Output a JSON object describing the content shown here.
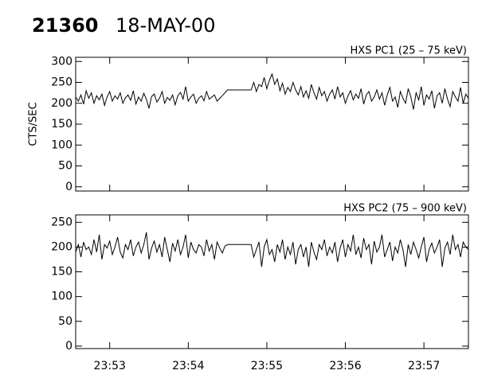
{
  "header": {
    "id": "21360",
    "date": "18-MAY-00"
  },
  "chart_data": [
    {
      "type": "line",
      "title": "HXS PC1 (25 – 75 keV)",
      "y_label": "CTS/SEC",
      "color": "#000000",
      "xlim": [
        85954,
        86254
      ],
      "xticks": [
        85980,
        86040,
        86100,
        86160,
        86220
      ],
      "ylim": [
        -10,
        310
      ],
      "yticks": [
        0,
        50,
        100,
        150,
        200,
        250,
        300
      ],
      "x": [
        85954,
        85956,
        85958,
        85960,
        85962,
        85964,
        85966,
        85968,
        85970,
        85972,
        85974,
        85976,
        85978,
        85980,
        85982,
        85984,
        85986,
        85988,
        85990,
        85992,
        85994,
        85996,
        85998,
        86000,
        86002,
        86004,
        86006,
        86008,
        86010,
        86012,
        86014,
        86016,
        86018,
        86020,
        86022,
        86024,
        86026,
        86028,
        86030,
        86032,
        86034,
        86036,
        86038,
        86040,
        86042,
        86044,
        86046,
        86048,
        86050,
        86052,
        86054,
        86056,
        86058,
        86060,
        86062,
        86064,
        86066,
        86068,
        86070,
        86088,
        86090,
        86092,
        86094,
        86096,
        86098,
        86100,
        86102,
        86104,
        86106,
        86108,
        86110,
        86112,
        86114,
        86116,
        86118,
        86120,
        86122,
        86124,
        86126,
        86128,
        86130,
        86132,
        86134,
        86136,
        86138,
        86140,
        86142,
        86144,
        86146,
        86148,
        86150,
        86152,
        86154,
        86156,
        86158,
        86160,
        86162,
        86164,
        86166,
        86168,
        86170,
        86172,
        86174,
        86176,
        86178,
        86180,
        86182,
        86184,
        86186,
        86188,
        86190,
        86192,
        86194,
        86196,
        86198,
        86200,
        86202,
        86204,
        86206,
        86208,
        86210,
        86212,
        86214,
        86216,
        86218,
        86220,
        86222,
        86224,
        86226,
        86228,
        86230,
        86232,
        86234,
        86236,
        86238,
        86240,
        86242,
        86244,
        86246,
        86248,
        86250,
        86252,
        86254
      ],
      "values": [
        215,
        205,
        220,
        198,
        230,
        212,
        225,
        200,
        218,
        208,
        222,
        195,
        215,
        228,
        205,
        218,
        210,
        225,
        200,
        213,
        220,
        207,
        230,
        198,
        215,
        205,
        224,
        210,
        188,
        216,
        222,
        203,
        212,
        228,
        200,
        214,
        207,
        220,
        196,
        218,
        226,
        210,
        240,
        205,
        215,
        222,
        200,
        212,
        218,
        206,
        228,
        210,
        215,
        220,
        205,
        212,
        218,
        225,
        232,
        232,
        250,
        228,
        245,
        240,
        262,
        235,
        255,
        270,
        245,
        258,
        230,
        248,
        222,
        238,
        228,
        250,
        232,
        220,
        240,
        215,
        230,
        212,
        245,
        225,
        210,
        238,
        218,
        228,
        205,
        222,
        232,
        210,
        240,
        215,
        225,
        200,
        218,
        230,
        208,
        222,
        212,
        235,
        198,
        220,
        228,
        205,
        215,
        232,
        210,
        225,
        195,
        220,
        238,
        205,
        215,
        190,
        228,
        212,
        200,
        235,
        215,
        185,
        225,
        208,
        240,
        195,
        220,
        210,
        230,
        188,
        218,
        225,
        200,
        235,
        210,
        192,
        228,
        215,
        205,
        238,
        200,
        222,
        212
      ]
    },
    {
      "type": "line",
      "title": "HXS PC2 (75 – 900 keV)",
      "color": "#000000",
      "xlim": [
        85954,
        86254
      ],
      "xticks": [
        {
          "value": 85980,
          "label": "23:53"
        },
        {
          "value": 86040,
          "label": "23:54"
        },
        {
          "value": 86100,
          "label": "23:55"
        },
        {
          "value": 86160,
          "label": "23:56"
        },
        {
          "value": 86220,
          "label": "23:57"
        }
      ],
      "ylim": [
        -5,
        265
      ],
      "yticks": [
        0,
        50,
        100,
        150,
        200,
        250
      ],
      "x": [
        85954,
        85956,
        85958,
        85960,
        85962,
        85964,
        85966,
        85968,
        85970,
        85972,
        85974,
        85976,
        85978,
        85980,
        85982,
        85984,
        85986,
        85988,
        85990,
        85992,
        85994,
        85996,
        85998,
        86000,
        86002,
        86004,
        86006,
        86008,
        86010,
        86012,
        86014,
        86016,
        86018,
        86020,
        86022,
        86024,
        86026,
        86028,
        86030,
        86032,
        86034,
        86036,
        86038,
        86040,
        86042,
        86044,
        86046,
        86048,
        86050,
        86052,
        86054,
        86056,
        86058,
        86060,
        86062,
        86064,
        86066,
        86068,
        86070,
        86088,
        86090,
        86092,
        86094,
        86096,
        86098,
        86100,
        86102,
        86104,
        86106,
        86108,
        86110,
        86112,
        86114,
        86116,
        86118,
        86120,
        86122,
        86124,
        86126,
        86128,
        86130,
        86132,
        86134,
        86136,
        86138,
        86140,
        86142,
        86144,
        86146,
        86148,
        86150,
        86152,
        86154,
        86156,
        86158,
        86160,
        86162,
        86164,
        86166,
        86168,
        86170,
        86172,
        86174,
        86176,
        86178,
        86180,
        86182,
        86184,
        86186,
        86188,
        86190,
        86192,
        86194,
        86196,
        86198,
        86200,
        86202,
        86204,
        86206,
        86208,
        86210,
        86212,
        86214,
        86216,
        86218,
        86220,
        86222,
        86224,
        86226,
        86228,
        86230,
        86232,
        86234,
        86236,
        86238,
        86240,
        86242,
        86244,
        86246,
        86248,
        86250,
        86252,
        86254
      ],
      "values": [
        190,
        205,
        180,
        210,
        195,
        200,
        185,
        215,
        190,
        225,
        175,
        205,
        198,
        212,
        185,
        200,
        220,
        190,
        178,
        205,
        195,
        215,
        182,
        200,
        210,
        188,
        205,
        230,
        175,
        198,
        212,
        190,
        205,
        180,
        220,
        195,
        170,
        208,
        192,
        215,
        185,
        200,
        225,
        178,
        210,
        195,
        188,
        205,
        200,
        182,
        215,
        192,
        205,
        175,
        210,
        198,
        188,
        202,
        205,
        205,
        180,
        195,
        210,
        160,
        200,
        215,
        185,
        195,
        170,
        205,
        190,
        215,
        175,
        200,
        185,
        210,
        165,
        195,
        205,
        180,
        200,
        160,
        210,
        190,
        175,
        205,
        195,
        215,
        182,
        200,
        188,
        210,
        170,
        198,
        215,
        180,
        205,
        192,
        225,
        185,
        200,
        178,
        218,
        195,
        205,
        165,
        212,
        190,
        200,
        225,
        180,
        195,
        210,
        172,
        200,
        188,
        215,
        195,
        160,
        205,
        185,
        210,
        195,
        178,
        200,
        220,
        170,
        195,
        208,
        188,
        200,
        215,
        160,
        198,
        210,
        185,
        225,
        195,
        205,
        180,
        210,
        200,
        195
      ]
    }
  ]
}
